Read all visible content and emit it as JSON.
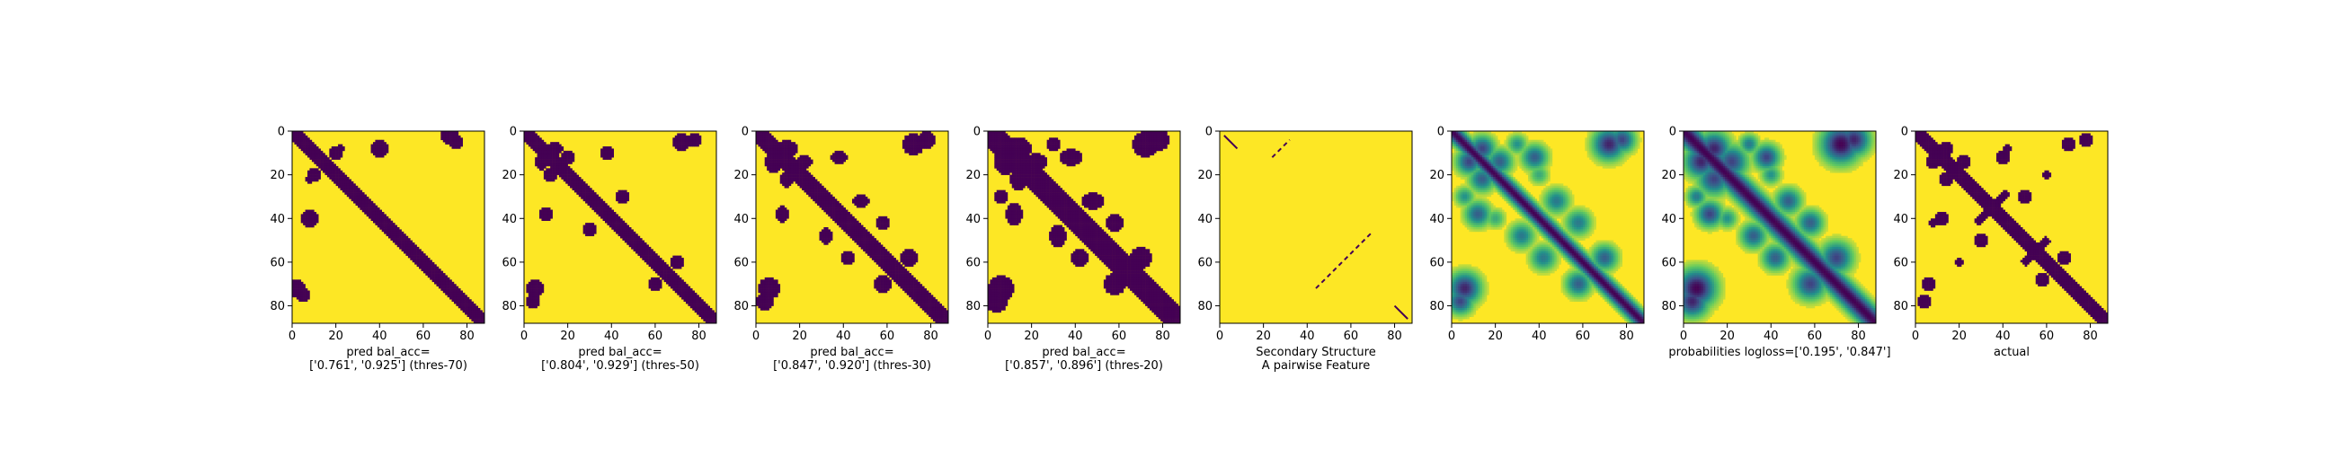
{
  "chart_data": [
    {
      "type": "heatmap",
      "render": "binary",
      "xticks": [
        0,
        20,
        40,
        60,
        80
      ],
      "yticks": [
        0,
        20,
        40,
        60,
        80
      ],
      "xlim": [
        0,
        88
      ],
      "ylim": [
        0,
        88
      ],
      "caption_lines": [
        "pred bal_acc=",
        "['0.761', '0.925'] (thres-70)"
      ],
      "contacts": [
        [
          0,
          88,
          3
        ],
        [
          60,
          88,
          1
        ],
        [
          0,
          10,
          3
        ],
        [
          2,
          12,
          3
        ]
      ],
      "blobs": [
        [
          20,
          10,
          3,
          3
        ],
        [
          40,
          8,
          4,
          4
        ],
        [
          72,
          2,
          4,
          4
        ],
        [
          75,
          5,
          3,
          3
        ],
        [
          22,
          8,
          2,
          2
        ]
      ]
    },
    {
      "type": "heatmap",
      "render": "binary",
      "xticks": [
        0,
        20,
        40,
        60,
        80
      ],
      "yticks": [
        0,
        20,
        40,
        60,
        80
      ],
      "xlim": [
        0,
        88
      ],
      "ylim": [
        0,
        88
      ],
      "caption_lines": [
        "pred bal_acc=",
        "['0.804', '0.929'] (thres-50)"
      ],
      "contacts": [
        [
          0,
          88,
          3
        ],
        [
          8,
          20,
          3
        ],
        [
          62,
          76,
          2
        ]
      ],
      "blobs": [
        [
          8,
          14,
          3,
          4
        ],
        [
          20,
          12,
          3,
          3
        ],
        [
          38,
          10,
          3,
          3
        ],
        [
          45,
          30,
          3,
          3
        ],
        [
          72,
          5,
          4,
          4
        ],
        [
          78,
          4,
          3,
          3
        ],
        [
          70,
          60,
          3,
          3
        ]
      ]
    },
    {
      "type": "heatmap",
      "render": "binary",
      "xticks": [
        0,
        20,
        40,
        60,
        80
      ],
      "yticks": [
        0,
        20,
        40,
        60,
        80
      ],
      "xlim": [
        0,
        88
      ],
      "ylim": [
        0,
        88
      ],
      "caption_lines": [
        "pred bal_acc=",
        "['0.847', '0.920'] (thres-30)"
      ],
      "contacts": [
        [
          0,
          88,
          4
        ],
        [
          8,
          22,
          4
        ],
        [
          30,
          50,
          3
        ],
        [
          62,
          76,
          3
        ],
        [
          10,
          30,
          2
        ]
      ],
      "blobs": [
        [
          8,
          14,
          4,
          5
        ],
        [
          22,
          14,
          4,
          3
        ],
        [
          38,
          12,
          4,
          3
        ],
        [
          48,
          32,
          4,
          3
        ],
        [
          72,
          6,
          5,
          5
        ],
        [
          78,
          4,
          4,
          4
        ],
        [
          70,
          58,
          4,
          4
        ],
        [
          58,
          42,
          3,
          3
        ]
      ]
    },
    {
      "type": "heatmap",
      "render": "binary",
      "xticks": [
        0,
        20,
        40,
        60,
        80
      ],
      "yticks": [
        0,
        20,
        40,
        60,
        80
      ],
      "xlim": [
        0,
        88
      ],
      "ylim": [
        0,
        88
      ],
      "caption_lines": [
        "pred bal_acc=",
        "['0.857', '0.896'] (thres-20)"
      ],
      "contacts": [
        [
          0,
          88,
          5
        ],
        [
          8,
          24,
          5
        ],
        [
          28,
          52,
          4
        ],
        [
          60,
          78,
          4
        ],
        [
          10,
          32,
          3
        ]
      ],
      "blobs": [
        [
          8,
          14,
          5,
          6
        ],
        [
          22,
          14,
          5,
          4
        ],
        [
          38,
          12,
          5,
          4
        ],
        [
          48,
          32,
          5,
          4
        ],
        [
          72,
          6,
          6,
          6
        ],
        [
          78,
          4,
          5,
          5
        ],
        [
          70,
          58,
          5,
          5
        ],
        [
          58,
          42,
          4,
          4
        ],
        [
          30,
          6,
          3,
          3
        ]
      ]
    },
    {
      "type": "heatmap",
      "render": "sparse",
      "xticks": [
        0,
        20,
        40,
        60,
        80
      ],
      "yticks": [
        0,
        20,
        40,
        60,
        80
      ],
      "xlim": [
        0,
        88
      ],
      "ylim": [
        0,
        88
      ],
      "caption_lines": [
        "Secondary Structure",
        "A pairwise Feature"
      ],
      "diagonal_segments": [
        [
          2,
          8
        ],
        [
          80,
          86
        ]
      ],
      "antidiagonal_segments": [
        [
          24,
          32,
          36
        ],
        [
          44,
          70,
          116
        ]
      ]
    },
    {
      "type": "heatmap",
      "render": "probability",
      "xticks": [
        0,
        20,
        40,
        60,
        80
      ],
      "yticks": [
        0,
        20,
        40,
        60,
        80
      ],
      "xlim": [
        0,
        88
      ],
      "ylim": [
        0,
        88
      ],
      "caption_lines": [
        ""
      ],
      "ridges": [
        [
          0,
          88,
          2.5,
          1.0
        ],
        [
          0,
          88,
          0.8,
          0.6
        ]
      ],
      "blobs": [
        [
          8,
          14,
          4,
          0.8
        ],
        [
          22,
          14,
          4,
          0.7
        ],
        [
          38,
          12,
          4,
          0.7
        ],
        [
          48,
          32,
          4,
          0.6
        ],
        [
          72,
          6,
          5,
          0.9
        ],
        [
          78,
          4,
          4,
          0.8
        ],
        [
          70,
          58,
          4,
          0.7
        ],
        [
          58,
          42,
          4,
          0.6
        ],
        [
          30,
          6,
          3,
          0.5
        ],
        [
          40,
          20,
          3,
          0.4
        ]
      ]
    },
    {
      "type": "heatmap",
      "render": "probability",
      "xticks": [
        0,
        20,
        40,
        60,
        80
      ],
      "yticks": [
        0,
        20,
        40,
        60,
        80
      ],
      "xlim": [
        0,
        88
      ],
      "ylim": [
        0,
        88
      ],
      "caption_lines": [
        "probabilities logloss=['0.195', '0.847']"
      ],
      "ridges": [
        [
          0,
          88,
          3.5,
          1.0
        ]
      ],
      "blobs": [
        [
          8,
          14,
          5,
          0.9
        ],
        [
          22,
          14,
          5,
          0.8
        ],
        [
          38,
          12,
          4,
          0.8
        ],
        [
          48,
          32,
          4,
          0.7
        ],
        [
          72,
          6,
          6,
          1.0
        ],
        [
          78,
          4,
          5,
          0.9
        ],
        [
          70,
          58,
          5,
          0.8
        ],
        [
          58,
          42,
          4,
          0.7
        ],
        [
          30,
          6,
          3,
          0.6
        ],
        [
          40,
          20,
          3,
          0.5
        ]
      ]
    },
    {
      "type": "heatmap",
      "render": "binary",
      "xticks": [
        0,
        20,
        40,
        60,
        80
      ],
      "yticks": [
        0,
        20,
        40,
        60,
        80
      ],
      "xlim": [
        0,
        88
      ],
      "ylim": [
        0,
        88
      ],
      "caption_lines": [
        "actual"
      ],
      "contacts": [
        [
          0,
          88,
          3
        ],
        [
          10,
          20,
          3
        ],
        [
          30,
          42,
          3
        ],
        [
          60,
          76,
          3
        ],
        [
          2,
          12,
          2
        ]
      ],
      "cross": [
        [
          35,
          35,
          10
        ],
        [
          55,
          55,
          8
        ]
      ],
      "blobs": [
        [
          8,
          14,
          3,
          3
        ],
        [
          22,
          14,
          3,
          3
        ],
        [
          40,
          12,
          3,
          3
        ],
        [
          50,
          30,
          3,
          3
        ],
        [
          70,
          6,
          3,
          3
        ],
        [
          78,
          4,
          3,
          3
        ],
        [
          68,
          58,
          3,
          3
        ],
        [
          60,
          20,
          2,
          2
        ],
        [
          42,
          8,
          2,
          2
        ]
      ]
    }
  ]
}
